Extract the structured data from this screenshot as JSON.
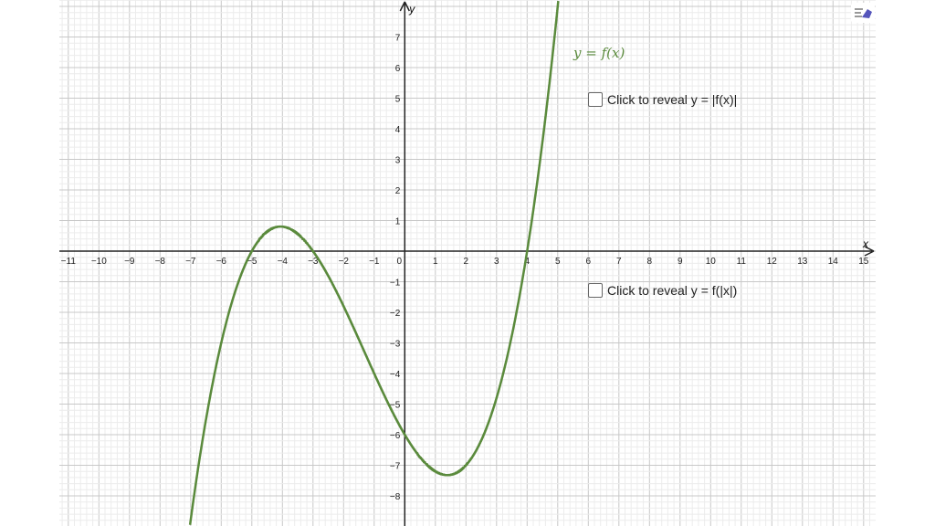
{
  "chart_data": {
    "type": "line",
    "function_label": "y = f(x)",
    "xlabel": "x",
    "ylabel": "y",
    "xlim": [
      -11.3,
      15.4
    ],
    "ylim": [
      -8.9,
      8.2
    ],
    "x_ticks": [
      -11,
      -10,
      -9,
      -8,
      -7,
      -6,
      -5,
      -4,
      -3,
      -2,
      -1,
      0,
      1,
      2,
      3,
      4,
      5,
      6,
      7,
      8,
      9,
      10,
      11,
      12,
      13,
      14,
      15
    ],
    "y_ticks": [
      -8,
      -7,
      -6,
      -5,
      -4,
      -3,
      -2,
      -1,
      1,
      2,
      3,
      4,
      5,
      6,
      7
    ],
    "grid": true,
    "minor_grid_subdivisions": 5,
    "series": [
      {
        "roots": [
          -5,
          -3,
          4
        ],
        "leading_coefficient": 0.1,
        "y_intercept": -6,
        "local_max": [
          -4,
          0.8
        ],
        "local_min": [
          1.4,
          -7.3
        ],
        "color": "#5a8a3c"
      }
    ]
  },
  "checkboxes": [
    {
      "label": "Click to reveal y = |f(x)|",
      "checked": false
    },
    {
      "label": "Click to reveal y = f(|x|)",
      "checked": false
    }
  ],
  "toolbar": {
    "style_bar_icon": "style-bar-icon",
    "accent": "#5555bb"
  }
}
